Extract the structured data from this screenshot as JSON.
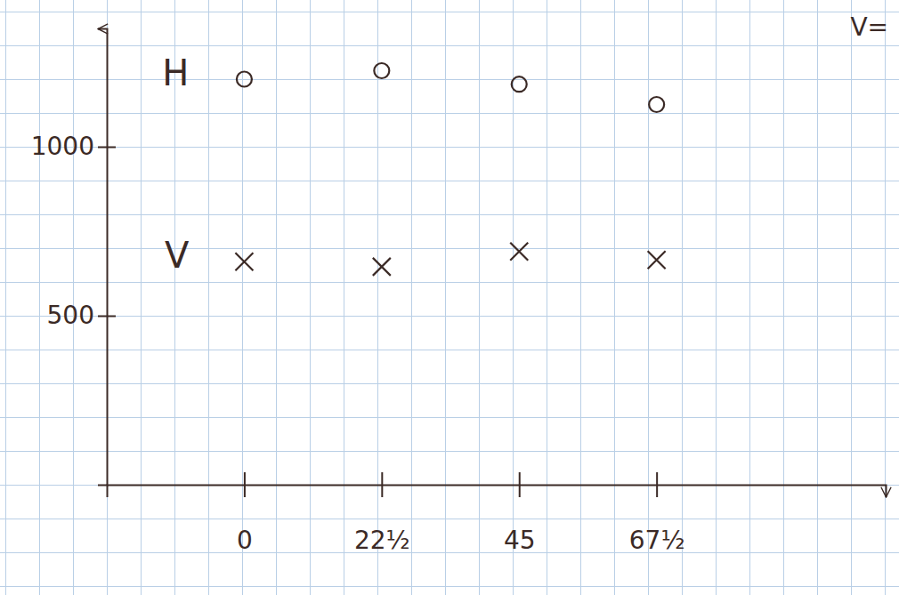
{
  "chart_data": {
    "type": "scatter",
    "x": [
      0,
      22.5,
      45,
      67.5
    ],
    "xlim": [
      -22.5,
      105
    ],
    "xticks": [
      0,
      {
        "value": 22.5,
        "label": "22½"
      },
      45,
      {
        "value": 67.5,
        "label": "67½"
      }
    ],
    "ylim": [
      0,
      1350
    ],
    "yticks": [
      500,
      1000
    ],
    "series": [
      {
        "name": "H",
        "marker": "circle",
        "color": "#3b2a26",
        "values": [
          1200,
          1225,
          1185,
          1125
        ]
      },
      {
        "name": "V",
        "marker": "x",
        "color": "#3b2a26",
        "values": [
          660,
          645,
          690,
          665
        ]
      }
    ],
    "annotations": [
      "V="
    ]
  }
}
